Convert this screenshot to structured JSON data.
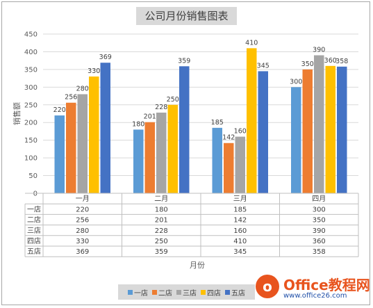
{
  "chart_data": {
    "type": "bar",
    "title": "公司月份销售图表",
    "xlabel": "月份",
    "ylabel": "销售额",
    "ylim": [
      0,
      450
    ],
    "yticks": [
      0,
      50,
      100,
      150,
      200,
      250,
      300,
      350,
      400,
      450
    ],
    "categories": [
      "一月",
      "二月",
      "三月",
      "四月"
    ],
    "series": [
      {
        "name": "一店",
        "color": "#5b9bd5",
        "values": [
          220,
          180,
          185,
          300
        ]
      },
      {
        "name": "二店",
        "color": "#ed7d31",
        "values": [
          256,
          201,
          142,
          350
        ]
      },
      {
        "name": "三店",
        "color": "#a5a5a5",
        "values": [
          280,
          228,
          160,
          390
        ]
      },
      {
        "name": "四店",
        "color": "#ffc000",
        "values": [
          330,
          250,
          410,
          360
        ]
      },
      {
        "name": "五店",
        "color": "#4472c4",
        "values": [
          369,
          359,
          345,
          358
        ]
      }
    ],
    "grid": true,
    "legend_position": "bottom",
    "data_table": true
  },
  "watermark": {
    "logo_letter": "o",
    "title": "Office教程网",
    "url": "www.office26.com"
  }
}
